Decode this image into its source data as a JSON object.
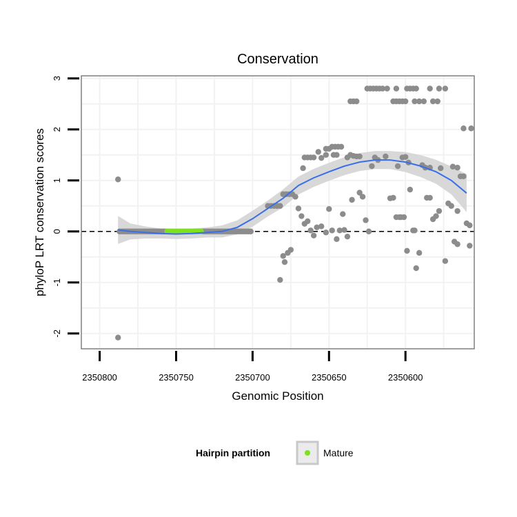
{
  "chart_data": {
    "type": "scatter",
    "title": "Conservation",
    "xlabel": "Genomic Position",
    "ylabel": "phyloP LRT conservation scores",
    "x_reversed": true,
    "xlim": [
      2350812,
      2350555
    ],
    "ylim": [
      -2.3,
      3.05
    ],
    "x_ticks": [
      2350800,
      2350750,
      2350700,
      2350650,
      2350600
    ],
    "x_tick_labels": [
      "2350800",
      "2350750",
      "2350700",
      "2350650",
      "2350600"
    ],
    "y_ticks": [
      -2,
      -1,
      0,
      1,
      2,
      3
    ],
    "y_tick_labels": [
      "-2",
      "-1",
      "0",
      "1",
      "2",
      "3"
    ],
    "reference_line": 0,
    "colors": {
      "points": "#8c8c8c",
      "mature": "#7fe020",
      "smooth": "#3a6ee8",
      "ribbon": "#d4d4d4",
      "panel_border": "#7f7f7f",
      "grid": "#f2f2f2"
    },
    "legend": {
      "title": "Hairpin partition",
      "entries": [
        "Mature"
      ]
    },
    "mature_region": [
      2350757,
      2350733
    ],
    "points": [
      [
        2350788,
        1.02
      ],
      [
        2350788,
        -2.08
      ],
      [
        2350690,
        0.5
      ],
      [
        2350688,
        0.5
      ],
      [
        2350686,
        0.5
      ],
      [
        2350684,
        0.5
      ],
      [
        2350682,
        0.5
      ],
      [
        2350680,
        0.73
      ],
      [
        2350678,
        0.73
      ],
      [
        2350676,
        0.73
      ],
      [
        2350674,
        0.73
      ],
      [
        2350684,
        0.5
      ],
      [
        2350680,
        -0.48
      ],
      [
        2350679,
        -0.6
      ],
      [
        2350677,
        -0.42
      ],
      [
        2350675,
        -0.36
      ],
      [
        2350682,
        -0.95
      ],
      [
        2350667,
        1.24
      ],
      [
        2350666,
        1.45
      ],
      [
        2350664,
        1.45
      ],
      [
        2350662,
        1.45
      ],
      [
        2350660,
        1.45
      ],
      [
        2350657,
        1.56
      ],
      [
        2350672,
        0.68
      ],
      [
        2350670,
        0.45
      ],
      [
        2350668,
        0.3
      ],
      [
        2350666,
        0.15
      ],
      [
        2350664,
        0.2
      ],
      [
        2350662,
        0.02
      ],
      [
        2350660,
        -0.08
      ],
      [
        2350658,
        0.08
      ],
      [
        2350655,
        1.44
      ],
      [
        2350652,
        1.5
      ],
      [
        2350650,
        1.62
      ],
      [
        2350647,
        1.5
      ],
      [
        2350645,
        1.5
      ],
      [
        2350652,
        1.62
      ],
      [
        2350648,
        1.66
      ],
      [
        2350646,
        1.66
      ],
      [
        2350644,
        1.66
      ],
      [
        2350642,
        1.66
      ],
      [
        2350655,
        0.1
      ],
      [
        2350652,
        -0.02
      ],
      [
        2350650,
        0.44
      ],
      [
        2350648,
        0.02
      ],
      [
        2350645,
        -0.15
      ],
      [
        2350643,
        0.02
      ],
      [
        2350641,
        0.34
      ],
      [
        2350640,
        0.03
      ],
      [
        2350638,
        -0.1
      ],
      [
        2350638,
        1.45
      ],
      [
        2350636,
        1.5
      ],
      [
        2350634,
        1.48
      ],
      [
        2350632,
        1.47
      ],
      [
        2350630,
        1.47
      ],
      [
        2350636,
        2.55
      ],
      [
        2350634,
        2.55
      ],
      [
        2350632,
        2.55
      ],
      [
        2350635,
        0.62
      ],
      [
        2350630,
        0.76
      ],
      [
        2350628,
        0.68
      ],
      [
        2350626,
        0.22
      ],
      [
        2350624,
        0.0
      ],
      [
        2350622,
        1.28
      ],
      [
        2350620,
        1.45
      ],
      [
        2350618,
        1.4
      ],
      [
        2350625,
        2.8
      ],
      [
        2350623,
        2.8
      ],
      [
        2350621,
        2.8
      ],
      [
        2350619,
        2.8
      ],
      [
        2350617,
        2.8
      ],
      [
        2350615,
        2.8
      ],
      [
        2350613,
        1.47
      ],
      [
        2350610,
        0.65
      ],
      [
        2350608,
        0.66
      ],
      [
        2350606,
        0.28
      ],
      [
        2350604,
        0.28
      ],
      [
        2350612,
        2.8
      ],
      [
        2350606,
        2.8
      ],
      [
        2350605,
        1.28
      ],
      [
        2350602,
        1.45
      ],
      [
        2350600,
        1.46
      ],
      [
        2350598,
        1.35
      ],
      [
        2350608,
        2.55
      ],
      [
        2350606,
        2.55
      ],
      [
        2350604,
        2.55
      ],
      [
        2350602,
        2.55
      ],
      [
        2350600,
        2.55
      ],
      [
        2350603,
        0.28
      ],
      [
        2350601,
        0.28
      ],
      [
        2350599,
        -0.38
      ],
      [
        2350597,
        0.82
      ],
      [
        2350595,
        0.02
      ],
      [
        2350594,
        0.02
      ],
      [
        2350593,
        -0.72
      ],
      [
        2350591,
        -0.42
      ],
      [
        2350599,
        2.8
      ],
      [
        2350597,
        2.8
      ],
      [
        2350595,
        2.8
      ],
      [
        2350593,
        2.8
      ],
      [
        2350594,
        2.55
      ],
      [
        2350591,
        2.55
      ],
      [
        2350589,
        1.3
      ],
      [
        2350587,
        1.25
      ],
      [
        2350584,
        1.25
      ],
      [
        2350586,
        0.66
      ],
      [
        2350584,
        0.66
      ],
      [
        2350582,
        0.24
      ],
      [
        2350580,
        0.3
      ],
      [
        2350578,
        0.4
      ],
      [
        2350588,
        2.55
      ],
      [
        2350584,
        2.8
      ],
      [
        2350578,
        2.8
      ],
      [
        2350582,
        2.55
      ],
      [
        2350579,
        2.55
      ],
      [
        2350577,
        1.24
      ],
      [
        2350574,
        -0.58
      ],
      [
        2350572,
        0.55
      ],
      [
        2350570,
        0.5
      ],
      [
        2350568,
        -0.2
      ],
      [
        2350566,
        -0.25
      ],
      [
        2350569,
        1.27
      ],
      [
        2350566,
        1.25
      ],
      [
        2350564,
        1.08
      ],
      [
        2350562,
        1.08
      ],
      [
        2350566,
        0.4
      ],
      [
        2350560,
        0.16
      ],
      [
        2350558,
        0.12
      ],
      [
        2350558,
        -0.28
      ],
      [
        2350562,
        2.02
      ],
      [
        2350557,
        2.02
      ],
      [
        2350574,
        2.8
      ]
    ],
    "smooth": {
      "x": [
        2350788,
        2350780,
        2350770,
        2350760,
        2350750,
        2350740,
        2350730,
        2350720,
        2350710,
        2350700,
        2350690,
        2350680,
        2350670,
        2350660,
        2350650,
        2350640,
        2350630,
        2350620,
        2350610,
        2350600,
        2350590,
        2350580,
        2350570,
        2350560
      ],
      "y": [
        0.03,
        0.0,
        -0.02,
        -0.04,
        -0.05,
        -0.04,
        -0.02,
        0.0,
        0.08,
        0.25,
        0.45,
        0.65,
        0.9,
        1.05,
        1.17,
        1.28,
        1.36,
        1.4,
        1.4,
        1.36,
        1.28,
        1.17,
        1.0,
        0.75
      ],
      "se": [
        0.14,
        0.08,
        0.06,
        0.05,
        0.05,
        0.05,
        0.05,
        0.06,
        0.07,
        0.08,
        0.08,
        0.09,
        0.09,
        0.09,
        0.09,
        0.09,
        0.09,
        0.09,
        0.09,
        0.1,
        0.11,
        0.12,
        0.14,
        0.19
      ]
    }
  }
}
